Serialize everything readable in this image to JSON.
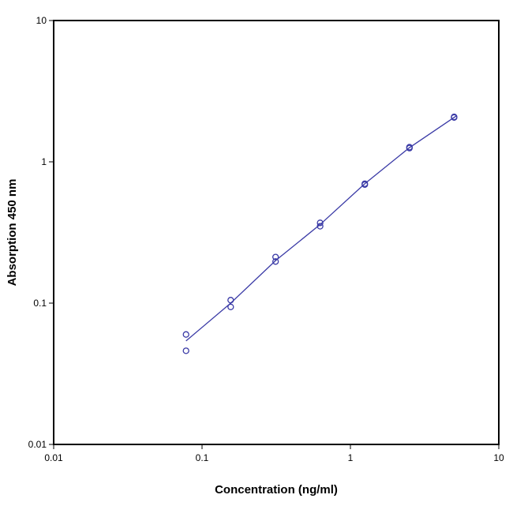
{
  "chart_data": {
    "type": "scatter",
    "title": "",
    "xlabel": "Concentration (ng/ml)",
    "ylabel": "Absorption 450 nm",
    "x_scale": "log",
    "y_scale": "log",
    "xlim": [
      0.01,
      10
    ],
    "ylim": [
      0.01,
      10
    ],
    "x_ticks": [
      0.01,
      0.1,
      1,
      10
    ],
    "x_tick_labels": [
      "0.01",
      "0.1",
      "1",
      "10"
    ],
    "y_ticks": [
      0.01,
      0.1,
      1,
      10
    ],
    "y_tick_labels": [
      "0.01",
      "0.1",
      "1",
      "10"
    ],
    "grid": false,
    "legend": "none",
    "colors": {
      "series": "#3a3aa6",
      "frame": "#000000"
    },
    "points": {
      "x": [
        0.078,
        0.078,
        0.156,
        0.156,
        0.313,
        0.313,
        0.625,
        0.625,
        1.25,
        1.25,
        2.5,
        2.5,
        5,
        5
      ],
      "y": [
        0.046,
        0.06,
        0.094,
        0.105,
        0.197,
        0.212,
        0.35,
        0.37,
        0.69,
        0.7,
        1.25,
        1.27,
        2.06,
        2.08
      ]
    },
    "fit_curve": {
      "x": [
        0.078,
        0.156,
        0.313,
        0.625,
        1.25,
        2.5,
        5.2
      ],
      "y": [
        0.054,
        0.1,
        0.2,
        0.36,
        0.7,
        1.26,
        2.12
      ]
    }
  }
}
